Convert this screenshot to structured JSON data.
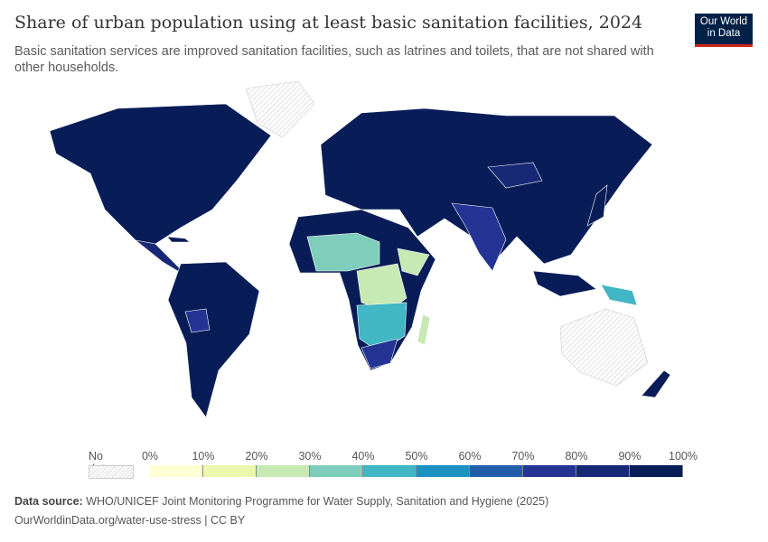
{
  "header": {
    "title": "Share of urban population using at least basic sanitation facilities, 2024",
    "subtitle": "Basic sanitation services are improved sanitation facilities, such as latrines and toilets, that are not shared with other households.",
    "logo": "Our World in Data"
  },
  "legend": {
    "no_data_label": "No data",
    "ticks": [
      "0%",
      "10%",
      "20%",
      "30%",
      "40%",
      "50%",
      "60%",
      "70%",
      "80%",
      "90%",
      "100%"
    ],
    "colors": [
      "#feffd2",
      "#ebf8ae",
      "#c7e9b4",
      "#7fcdbb",
      "#41b6c4",
      "#1d91c0",
      "#225ea8",
      "#253494",
      "#172976",
      "#081d58"
    ],
    "no_data_color": "#e0e0e0"
  },
  "footer": {
    "source_label": "Data source:",
    "source": "WHO/UNICEF Joint Monitoring Programme for Water Supply, Sanitation and Hygiene (2025)",
    "url": "OurWorldinData.org/water-use-stress | CC BY"
  }
}
